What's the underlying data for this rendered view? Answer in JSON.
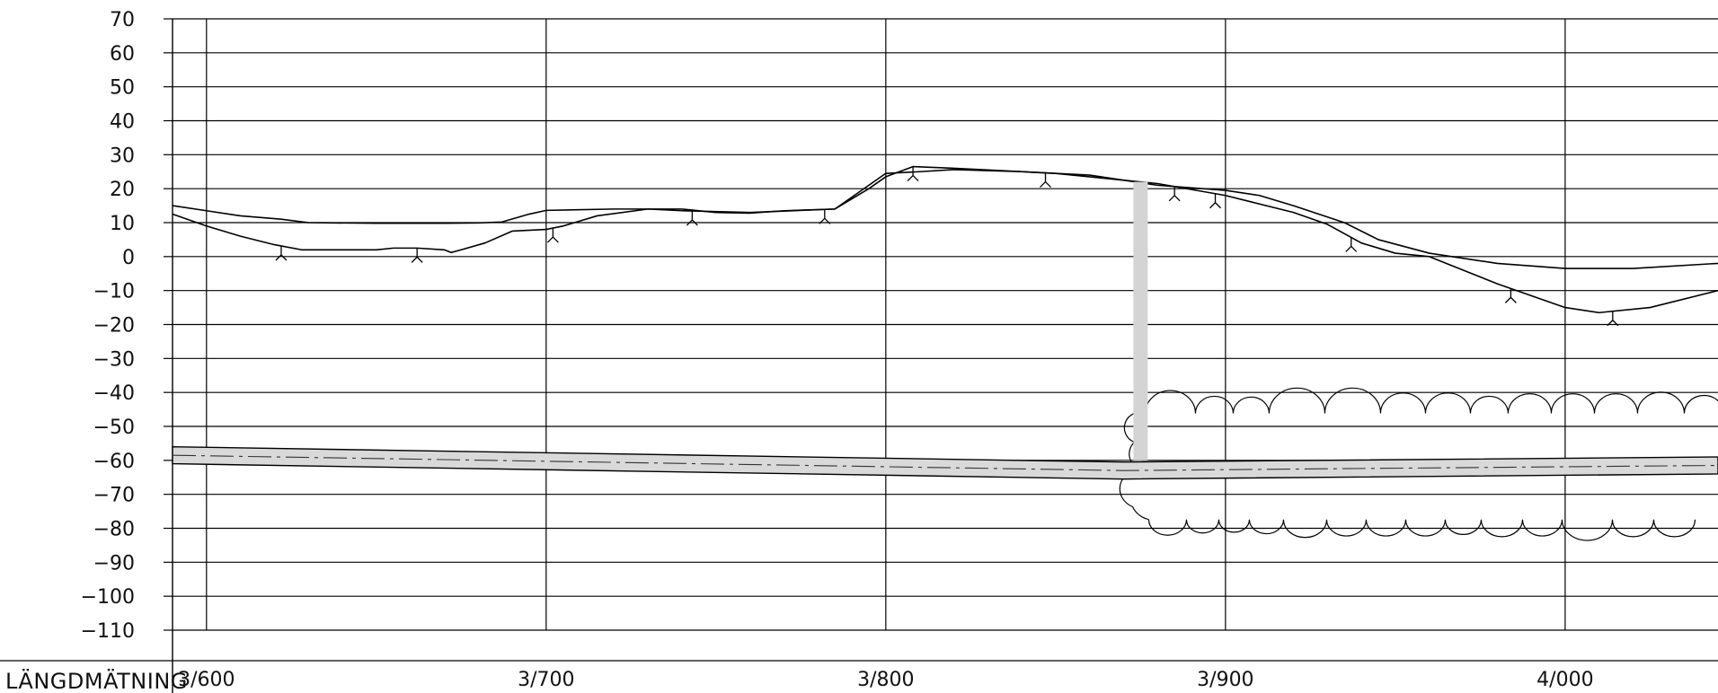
{
  "chart_data": {
    "type": "line",
    "title": "",
    "ylabel": "",
    "row_label": "LÄNGDMÄTNING",
    "ylim": [
      -110,
      70
    ],
    "y_ticks": [
      70,
      60,
      50,
      40,
      30,
      20,
      10,
      0,
      -10,
      -20,
      -30,
      -40,
      -50,
      -60,
      -70,
      -80,
      -90,
      -100,
      -110
    ],
    "y_tick_labels": [
      "70",
      "60",
      "50",
      "40",
      "30",
      "20",
      "10",
      "0",
      "−10",
      "−20",
      "−30",
      "−40",
      "−50",
      "−60",
      "−70",
      "−80",
      "−90",
      "−100",
      "−110"
    ],
    "x_range": [
      3590,
      4045
    ],
    "x_ticks": [
      {
        "value": 3600,
        "label": "3/600"
      },
      {
        "value": 3700,
        "label": "3/700"
      },
      {
        "value": 3800,
        "label": "3/800"
      },
      {
        "value": 3900,
        "label": "3/900"
      },
      {
        "value": 4000,
        "label": "4/000"
      }
    ],
    "grid": true,
    "series": [
      {
        "key": "upper_terrain",
        "points": [
          [
            3590,
            15
          ],
          [
            3600,
            13.5
          ],
          [
            3610,
            12
          ],
          [
            3622,
            11
          ],
          [
            3630,
            10
          ],
          [
            3650,
            9.8
          ],
          [
            3670,
            9.8
          ],
          [
            3680,
            9.9
          ],
          [
            3687,
            10.2
          ],
          [
            3695,
            12.5
          ],
          [
            3700,
            13.6
          ],
          [
            3720,
            14
          ],
          [
            3740,
            14
          ],
          [
            3750,
            13
          ],
          [
            3760,
            12.8
          ],
          [
            3770,
            13.5
          ],
          [
            3785,
            14
          ],
          [
            3800,
            24.5
          ],
          [
            3810,
            25
          ],
          [
            3820,
            25.6
          ],
          [
            3840,
            25
          ],
          [
            3860,
            24
          ],
          [
            3880,
            21
          ],
          [
            3900,
            19.5
          ],
          [
            3910,
            18
          ],
          [
            3920,
            15
          ],
          [
            3935,
            10
          ],
          [
            3945,
            5
          ],
          [
            3960,
            1
          ],
          [
            3980,
            -2
          ],
          [
            4000,
            -3.5
          ],
          [
            4020,
            -3.5
          ],
          [
            4045,
            -2
          ]
        ],
        "tick_marks": []
      },
      {
        "key": "lower_terrain",
        "points": [
          [
            3590,
            12.5
          ],
          [
            3600,
            9
          ],
          [
            3610,
            6
          ],
          [
            3620,
            3.5
          ],
          [
            3628,
            2
          ],
          [
            3640,
            2
          ],
          [
            3650,
            2
          ],
          [
            3655,
            2.5
          ],
          [
            3662,
            2.5
          ],
          [
            3670,
            2
          ],
          [
            3672,
            1.2
          ],
          [
            3675,
            2
          ],
          [
            3682,
            4
          ],
          [
            3690,
            7.5
          ],
          [
            3700,
            8
          ],
          [
            3705,
            9
          ],
          [
            3715,
            12
          ],
          [
            3730,
            14
          ],
          [
            3740,
            13.5
          ],
          [
            3760,
            13
          ],
          [
            3785,
            14
          ],
          [
            3795,
            20
          ],
          [
            3800,
            23.5
          ],
          [
            3808,
            26.5
          ],
          [
            3820,
            26
          ],
          [
            3850,
            24.5
          ],
          [
            3880,
            21.5
          ],
          [
            3900,
            18
          ],
          [
            3908,
            16
          ],
          [
            3920,
            13
          ],
          [
            3930,
            9.5
          ],
          [
            3940,
            4
          ],
          [
            3950,
            1
          ],
          [
            3960,
            0
          ],
          [
            3980,
            -8
          ],
          [
            4000,
            -15
          ],
          [
            4010,
            -16.5
          ],
          [
            4025,
            -15
          ],
          [
            4045,
            -10
          ]
        ],
        "tick_marks": [
          3622,
          3662,
          3702,
          3743,
          3782,
          3808,
          3847,
          3885,
          3897,
          3937,
          3984,
          4014
        ]
      }
    ],
    "pipe": {
      "key": "pipe_band",
      "x": [
        3590,
        3870,
        4045
      ],
      "top": [
        -56,
        -60.5,
        -59
      ],
      "bottom": [
        -61,
        -65.5,
        -64
      ],
      "centerline": [
        -58.5,
        -63,
        -61.5
      ]
    },
    "vertical_bar": {
      "x": 3875,
      "y_top": 22,
      "y_bottom": -60
    },
    "cloud_region": {
      "x_from": 3870,
      "x_to": 4045,
      "y_top": -43,
      "y_bottom": -79
    },
    "colors": {
      "line": "#000000",
      "grid": "#000000",
      "band_fill": "#d9d9d9",
      "marker_bar": "#d4d4d4"
    }
  }
}
